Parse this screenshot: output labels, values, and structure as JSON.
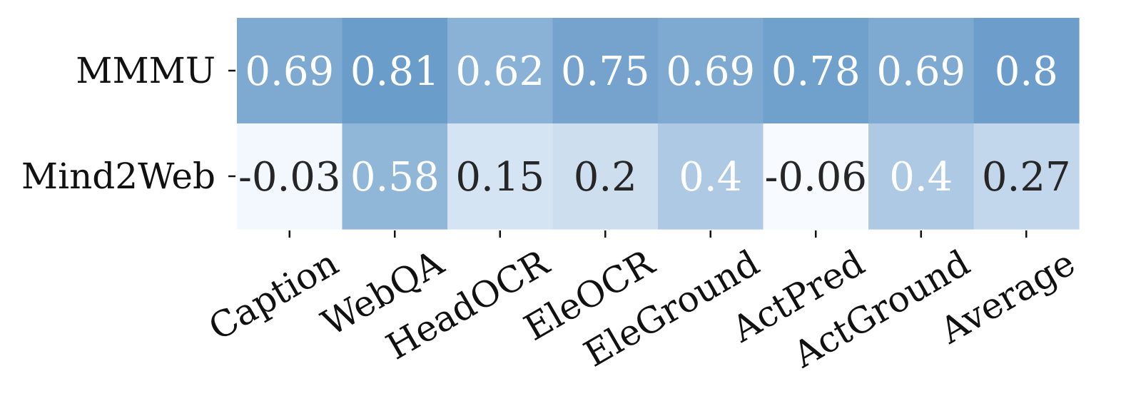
{
  "chart_data": {
    "type": "heatmap",
    "title": "",
    "xlabel": "",
    "ylabel": "",
    "rows": [
      "MMMU",
      "Mind2Web"
    ],
    "columns": [
      "Caption",
      "WebQA",
      "HeadOCR",
      "EleOCR",
      "EleGround",
      "ActPred",
      "ActGround",
      "Average"
    ],
    "values": [
      [
        0.69,
        0.81,
        0.62,
        0.75,
        0.69,
        0.78,
        0.69,
        0.8
      ],
      [
        -0.03,
        0.58,
        0.15,
        0.2,
        0.4,
        -0.06,
        0.4,
        0.27
      ]
    ],
    "labels": [
      [
        "0.69",
        "0.81",
        "0.62",
        "0.75",
        "0.69",
        "0.78",
        "0.69",
        "0.8"
      ],
      [
        "-0.03",
        "0.58",
        "0.15",
        "0.2",
        "0.4",
        "-0.06",
        "0.4",
        "0.27"
      ]
    ],
    "colormap": "Blues",
    "color_range": [
      -0.06,
      0.81
    ],
    "colors": {
      "low": "#f7fbff",
      "high": "#6b9dca",
      "light_text": "#ffffff",
      "dark_text": "#262626"
    },
    "colorbar": false,
    "grid": false
  }
}
